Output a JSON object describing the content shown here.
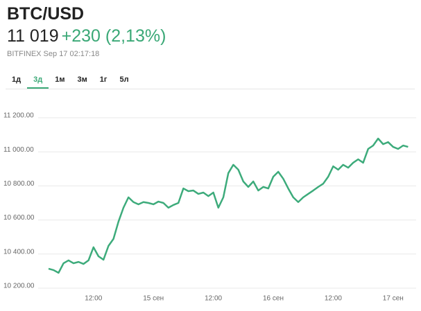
{
  "header": {
    "title": "BTC/USD",
    "price": "11 019",
    "change": "+230 (2,13%)",
    "source": "BITFINEX Sep 17 02:17:18"
  },
  "tabs": [
    "1д",
    "3д",
    "1м",
    "3м",
    "1г",
    "5л"
  ],
  "active_tab": 1,
  "chart_data": {
    "type": "line",
    "categories": [
      null,
      null,
      null,
      null,
      null,
      null,
      null,
      null,
      null,
      "12:00",
      null,
      null,
      null,
      null,
      null,
      null,
      null,
      null,
      null,
      null,
      null,
      "15 сен",
      null,
      null,
      null,
      null,
      null,
      null,
      null,
      null,
      null,
      null,
      null,
      "12:00",
      null,
      null,
      null,
      null,
      null,
      null,
      null,
      null,
      null,
      null,
      null,
      "16 сен",
      null,
      null,
      null,
      null,
      null,
      null,
      null,
      null,
      null,
      null,
      null,
      "12:00",
      null,
      null,
      null,
      null,
      null,
      null,
      null,
      null,
      null,
      null,
      null,
      "17 сен",
      null,
      null,
      null
    ],
    "series": [
      {
        "name": "BTC/USD",
        "color": "#3dab7b",
        "values": [
          10314,
          10306,
          10290,
          10346,
          10363,
          10346,
          10354,
          10342,
          10363,
          10440,
          10387,
          10367,
          10448,
          10489,
          10590,
          10672,
          10733,
          10705,
          10692,
          10705,
          10700,
          10692,
          10708,
          10700,
          10672,
          10688,
          10700,
          10785,
          10769,
          10773,
          10753,
          10761,
          10740,
          10761,
          10672,
          10733,
          10875,
          10924,
          10895,
          10826,
          10794,
          10826,
          10773,
          10794,
          10785,
          10854,
          10883,
          10842,
          10785,
          10733,
          10705,
          10733,
          10753,
          10773,
          10794,
          10813,
          10854,
          10915,
          10895,
          10924,
          10907,
          10936,
          10956,
          10936,
          11017,
          11037,
          11078,
          11045,
          11057,
          11029,
          11017,
          11037,
          11029
        ]
      }
    ],
    "ylim": [
      10200,
      11200
    ],
    "yticks": [
      {
        "value": 10200,
        "label": "10 200.00"
      },
      {
        "value": 10400,
        "label": "10 400.00"
      },
      {
        "value": 10600,
        "label": "10 600.00"
      },
      {
        "value": 10800,
        "label": "10 800.00"
      },
      {
        "value": 11000,
        "label": "11 000.00"
      },
      {
        "value": 11200,
        "label": "11 200.00"
      }
    ],
    "grid": true
  }
}
